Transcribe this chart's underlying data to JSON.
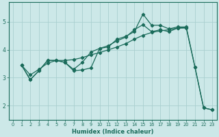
{
  "title": "",
  "xlabel": "Humidex (Indice chaleur)",
  "bg_color": "#cce8e8",
  "line_color": "#1a6b5a",
  "grid_color": "#aad0d0",
  "xlim": [
    -0.5,
    23.5
  ],
  "ylim": [
    1.5,
    5.7
  ],
  "xticks": [
    0,
    1,
    2,
    3,
    4,
    5,
    6,
    7,
    8,
    9,
    10,
    11,
    12,
    13,
    14,
    15,
    16,
    17,
    18,
    19,
    20,
    21,
    22,
    23
  ],
  "yticks": [
    2,
    3,
    4,
    5
  ],
  "line1_x": [
    1,
    2,
    3,
    4,
    5,
    6,
    7,
    8,
    9,
    10,
    11,
    12,
    13,
    14,
    15,
    16,
    17,
    18,
    19,
    20,
    21,
    22,
    23
  ],
  "line1_y": [
    3.45,
    2.93,
    3.25,
    3.62,
    3.62,
    3.55,
    3.25,
    3.28,
    3.35,
    4.05,
    4.1,
    4.38,
    4.48,
    4.65,
    5.28,
    4.88,
    4.88,
    4.75,
    4.82,
    4.82,
    3.38,
    1.92,
    1.85
  ],
  "line2_x": [
    1,
    2,
    3,
    4,
    5,
    6,
    7,
    8,
    9,
    10,
    11,
    12,
    13,
    14,
    15,
    16,
    17,
    18,
    19,
    20,
    21,
    22,
    23
  ],
  "line2_y": [
    3.45,
    2.93,
    3.25,
    3.62,
    3.62,
    3.55,
    3.3,
    3.55,
    3.92,
    4.05,
    4.15,
    4.32,
    4.45,
    4.72,
    4.9,
    4.65,
    4.72,
    4.65,
    4.78,
    4.78,
    3.38,
    1.92,
    1.85
  ],
  "line3_x": [
    1,
    2,
    3,
    4,
    5,
    6,
    7,
    8,
    9,
    10,
    11,
    12,
    13,
    14,
    15,
    16,
    17,
    18,
    19,
    20
  ],
  "line3_y": [
    3.45,
    3.1,
    3.3,
    3.52,
    3.62,
    3.62,
    3.65,
    3.72,
    3.82,
    3.9,
    4.0,
    4.1,
    4.22,
    4.38,
    4.52,
    4.62,
    4.68,
    4.72,
    4.78,
    4.8
  ]
}
